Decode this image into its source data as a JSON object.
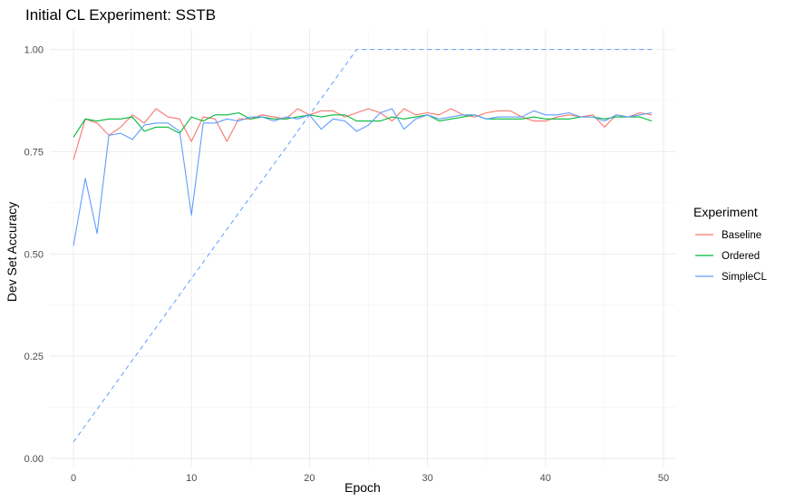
{
  "chart_data": {
    "type": "line",
    "title": "Initial CL Experiment: SSTB",
    "xlabel": "Epoch",
    "ylabel": "Dev Set Accuracy",
    "xlim": [
      -2,
      51
    ],
    "ylim": [
      -0.02,
      1.05
    ],
    "x_ticks": [
      0,
      10,
      20,
      30,
      40,
      50
    ],
    "x_tick_labels": [
      "0",
      "10",
      "20",
      "30",
      "40",
      "50"
    ],
    "y_ticks": [
      0,
      0.25,
      0.5,
      0.75,
      1.0
    ],
    "y_tick_labels": [
      "0.00",
      "0.25",
      "0.50",
      "0.75",
      "1.00"
    ],
    "grid": true,
    "legend": {
      "title": "Experiment",
      "position": "right"
    },
    "x": [
      0,
      1,
      2,
      3,
      4,
      5,
      6,
      7,
      8,
      9,
      10,
      11,
      12,
      13,
      14,
      15,
      16,
      17,
      18,
      19,
      20,
      21,
      22,
      23,
      24,
      25,
      26,
      27,
      28,
      29,
      30,
      31,
      32,
      33,
      34,
      35,
      36,
      37,
      38,
      39,
      40,
      41,
      42,
      43,
      44,
      45,
      46,
      47,
      48,
      49
    ],
    "series": [
      {
        "name": "Baseline",
        "color": "#f8766d",
        "values": [
          0.73,
          0.83,
          0.82,
          0.79,
          0.81,
          0.84,
          0.82,
          0.855,
          0.835,
          0.83,
          0.775,
          0.835,
          0.83,
          0.775,
          0.83,
          0.83,
          0.84,
          0.835,
          0.83,
          0.855,
          0.84,
          0.85,
          0.85,
          0.835,
          0.845,
          0.855,
          0.845,
          0.825,
          0.855,
          0.84,
          0.845,
          0.84,
          0.855,
          0.84,
          0.835,
          0.845,
          0.85,
          0.85,
          0.835,
          0.825,
          0.825,
          0.835,
          0.84,
          0.835,
          0.84,
          0.81,
          0.84,
          0.835,
          0.845,
          0.84
        ]
      },
      {
        "name": "Ordered",
        "color": "#00ba38",
        "values": [
          0.785,
          0.83,
          0.825,
          0.83,
          0.83,
          0.835,
          0.8,
          0.81,
          0.81,
          0.795,
          0.835,
          0.825,
          0.84,
          0.84,
          0.845,
          0.83,
          0.835,
          0.83,
          0.83,
          0.835,
          0.84,
          0.835,
          0.84,
          0.84,
          0.825,
          0.825,
          0.825,
          0.835,
          0.83,
          0.835,
          0.84,
          0.825,
          0.83,
          0.835,
          0.84,
          0.83,
          0.83,
          0.83,
          0.83,
          0.835,
          0.83,
          0.83,
          0.83,
          0.835,
          0.835,
          0.83,
          0.835,
          0.835,
          0.835,
          0.825
        ]
      },
      {
        "name": "SimpleCL",
        "color": "#619cff",
        "values": [
          0.52,
          0.685,
          0.55,
          0.79,
          0.795,
          0.78,
          0.815,
          0.82,
          0.82,
          0.8,
          0.595,
          0.82,
          0.82,
          0.83,
          0.825,
          0.835,
          0.835,
          0.825,
          0.835,
          0.83,
          0.84,
          0.805,
          0.83,
          0.825,
          0.8,
          0.815,
          0.845,
          0.855,
          0.805,
          0.83,
          0.84,
          0.83,
          0.835,
          0.84,
          0.84,
          0.83,
          0.835,
          0.835,
          0.835,
          0.85,
          0.84,
          0.84,
          0.845,
          0.835,
          0.835,
          0.825,
          0.84,
          0.835,
          0.84,
          0.845
        ]
      }
    ],
    "reference_line": {
      "style": "dashed",
      "color": "#619cff",
      "x": [
        0,
        24,
        49
      ],
      "values": [
        0.04,
        1.0,
        1.0
      ]
    }
  }
}
